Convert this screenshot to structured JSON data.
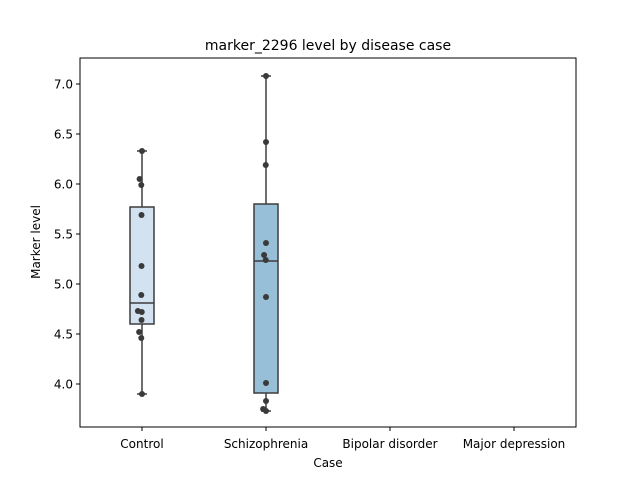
{
  "chart_data": {
    "type": "box",
    "title": "marker_2296 level by disease case",
    "xlabel": "Case",
    "ylabel": "Marker level",
    "ylim": [
      3.57,
      7.26
    ],
    "yticks": [
      4.0,
      4.5,
      5.0,
      5.5,
      6.0,
      6.5,
      7.0
    ],
    "ytick_labels": [
      "4.0",
      "4.5",
      "5.0",
      "5.5",
      "6.0",
      "6.5",
      "7.0"
    ],
    "categories": [
      "Control",
      "Schizophrenia",
      "Bipolar disorder",
      "Major depression"
    ],
    "boxes": [
      {
        "category": "Control",
        "whisker_low": 3.9,
        "q1": 4.6,
        "median": 4.81,
        "q3": 5.77,
        "whisker_high": 6.33,
        "color": "#d3e2f1"
      },
      {
        "category": "Schizophrenia",
        "whisker_low": 3.73,
        "q1": 3.91,
        "median": 5.23,
        "q3": 5.8,
        "whisker_high": 7.08,
        "color": "#97bfd7"
      }
    ],
    "points": [
      {
        "category": "Control",
        "values": [
          6.33,
          6.05,
          5.99,
          5.69,
          5.18,
          4.89,
          4.73,
          4.72,
          4.64,
          4.52,
          4.46,
          3.9
        ],
        "offsets": [
          0.0,
          -0.1,
          -0.03,
          -0.02,
          -0.02,
          -0.03,
          -0.17,
          -0.01,
          -0.02,
          -0.12,
          -0.03,
          0.0
        ]
      },
      {
        "category": "Schizophrenia",
        "values": [
          7.08,
          6.42,
          6.19,
          5.41,
          5.29,
          5.24,
          4.87,
          4.01,
          3.83,
          3.75,
          3.73
        ],
        "offsets": [
          0.0,
          0.0,
          -0.01,
          0.0,
          -0.08,
          -0.01,
          0.0,
          0.0,
          0.0,
          -0.12,
          0.0
        ]
      }
    ],
    "colors": {
      "box_edge": "#3d3d3d",
      "point": "#3a3a3a"
    },
    "grid": false,
    "legend": "none"
  }
}
